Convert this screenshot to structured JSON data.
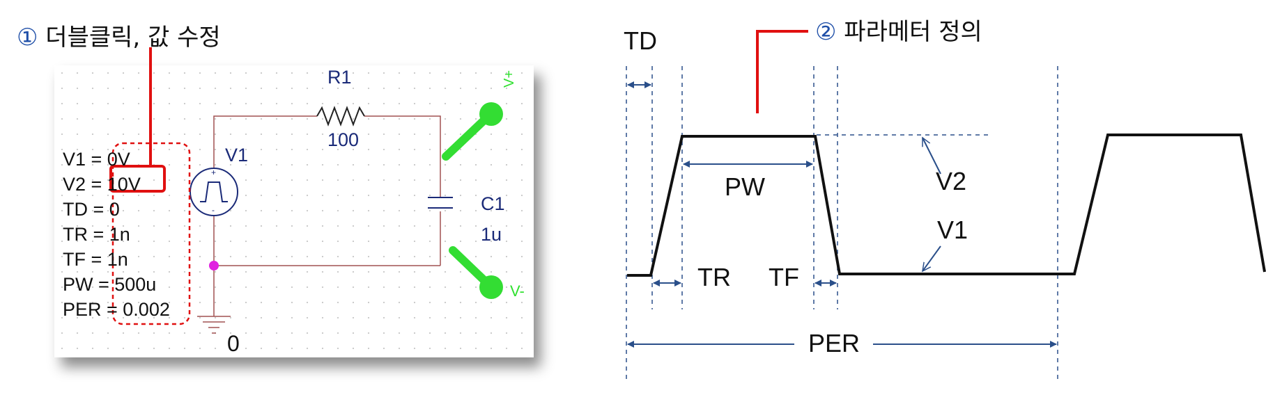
{
  "callouts": {
    "step1_marker": "①",
    "step1_text": "더블클릭, 값 수정",
    "step2_marker": "②",
    "step2_text": "파라메터 정의"
  },
  "schematic": {
    "parameters": [
      "V1 = 0V",
      "V2 = 10V",
      "TD = 0",
      "TR = 1n",
      "TF = 1n",
      "PW = 500u",
      "PER = 0.002"
    ],
    "source": "V1",
    "resistor": {
      "name": "R1",
      "value": "100"
    },
    "capacitor": {
      "name": "C1",
      "value": "1u"
    },
    "ground": "0",
    "probe_plus": "V+",
    "probe_minus": "V-",
    "colors": {
      "wire": "#a05050",
      "probe": "#33dd33",
      "highlight": "#e01010",
      "node": "#e020e0"
    }
  },
  "waveform": {
    "labels": {
      "td": "TD",
      "tr": "TR",
      "tf": "TF",
      "pw": "PW",
      "v1": "V1",
      "v2": "V2",
      "per": "PER"
    },
    "colors": {
      "dimension": "#2a4f8a",
      "signal": "#111111"
    }
  }
}
